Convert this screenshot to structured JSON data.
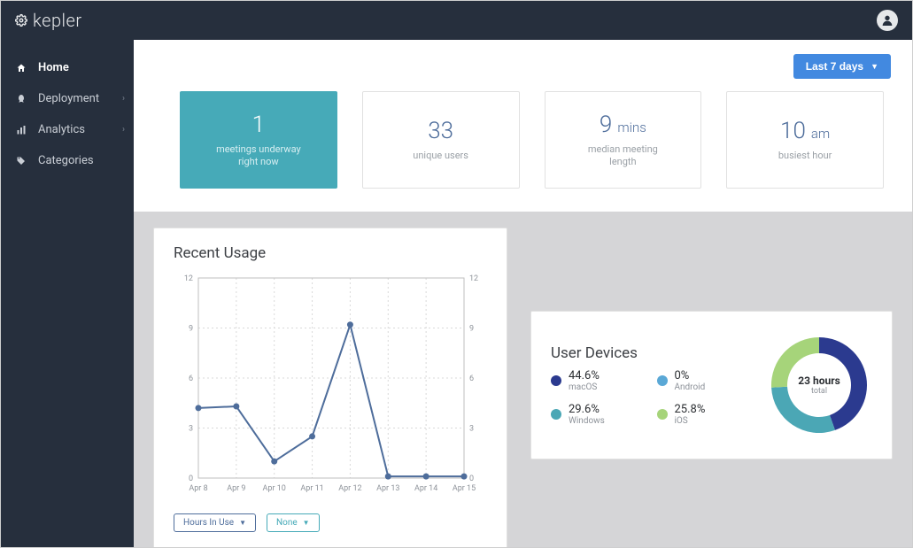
{
  "brand": "kepler",
  "sidebar": {
    "items": [
      {
        "label": "Home",
        "icon": "home",
        "active": true,
        "expandable": false
      },
      {
        "label": "Deployment",
        "icon": "rocket",
        "active": false,
        "expandable": true
      },
      {
        "label": "Analytics",
        "icon": "bars",
        "active": false,
        "expandable": true
      },
      {
        "label": "Categories",
        "icon": "tag",
        "active": false,
        "expandable": false
      }
    ]
  },
  "filter": {
    "label": "Last 7 days"
  },
  "metrics": [
    {
      "value": "1",
      "unit": "",
      "label": "meetings underway\nright now",
      "highlight": true
    },
    {
      "value": "33",
      "unit": "",
      "label": "unique users",
      "highlight": false
    },
    {
      "value": "9",
      "unit": "mins",
      "label": "median meeting\nlength",
      "highlight": false
    },
    {
      "value": "10",
      "unit": "am",
      "label": "busiest hour",
      "highlight": false
    }
  ],
  "usage_chart": {
    "title": "Recent Usage",
    "type": "line",
    "x_labels": [
      "Apr 8",
      "Apr 9",
      "Apr 10",
      "Apr 11",
      "Apr 12",
      "Apr 13",
      "Apr 14",
      "Apr 15"
    ],
    "series": [
      {
        "name": "Hours In Use",
        "values": [
          4.2,
          4.3,
          1.0,
          2.5,
          9.2,
          0.1,
          0.1,
          0.1
        ],
        "color": "#4e6d9b"
      }
    ],
    "ylim": [
      0,
      12
    ],
    "ytick_step": 3,
    "line_width": 2,
    "marker_radius": 3.5,
    "marker_color": "#4e6d9b",
    "grid_color": "#d9d9d9",
    "axis_color": "#bfbfbf",
    "background_color": "#ffffff",
    "label_fontsize": 9,
    "controls": [
      {
        "label": "Hours In Use",
        "style": "blue"
      },
      {
        "label": "None",
        "style": "teal"
      }
    ]
  },
  "devices_panel": {
    "title": "User Devices",
    "type": "donut",
    "slices": [
      {
        "label": "macOS",
        "pct": 44.6,
        "color": "#2b3a8f"
      },
      {
        "label": "Windows",
        "pct": 29.6,
        "color": "#4ba7b5"
      },
      {
        "label": "Android",
        "pct": 0,
        "color": "#5aa8d6"
      },
      {
        "label": "iOS",
        "pct": 25.8,
        "color": "#a6d47a"
      }
    ],
    "center_value": "23 hours",
    "center_label": "total",
    "donut_thickness": 18,
    "background_color": "#ffffff"
  },
  "colors": {
    "topbar_bg": "#262f3d",
    "main_bg": "#d5d5d7",
    "accent_blue": "#4289e0",
    "card_border": "#e1e1e1",
    "metric_value": "#4e6d9b",
    "highlight_teal": "#46aab8"
  }
}
